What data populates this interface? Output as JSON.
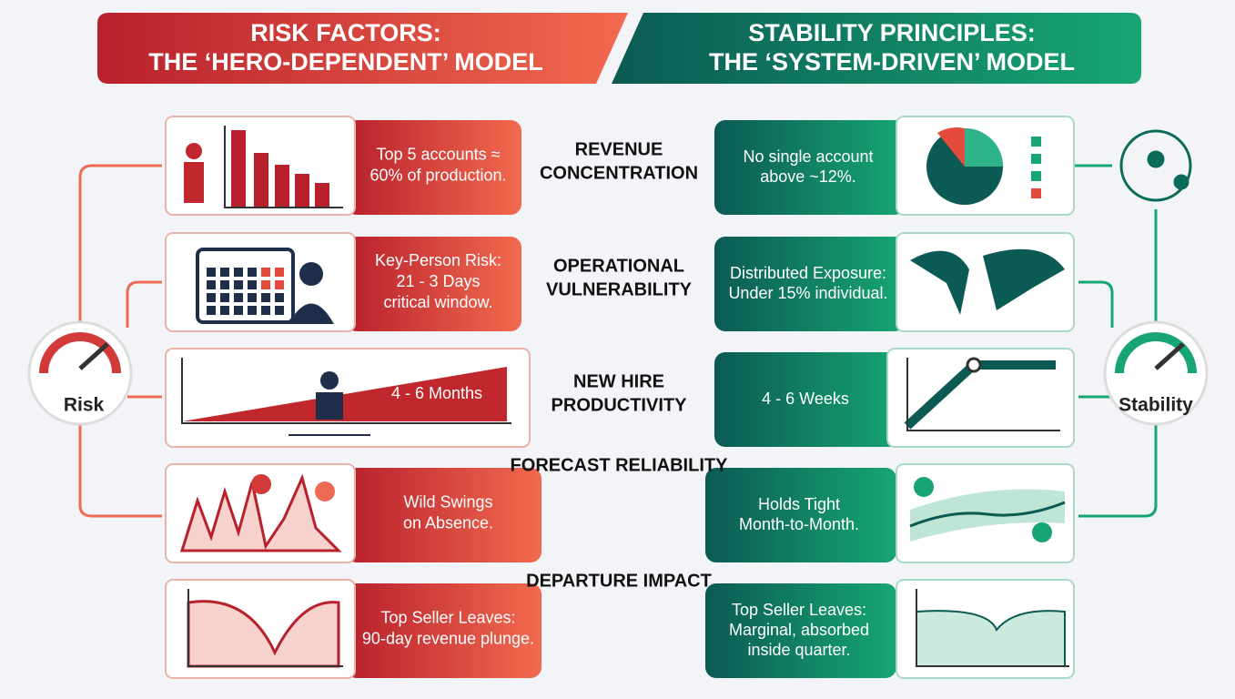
{
  "header": {
    "risk": [
      "RISK FACTORS:",
      "THE ‘HERO-DEPENDENT’ MODEL"
    ],
    "stability": [
      "STABILITY PRINCIPLES:",
      "THE ‘SYSTEM-DRIVEN’ MODEL"
    ]
  },
  "gauges": {
    "risk": "Risk",
    "stability": "Stability"
  },
  "rows": [
    {
      "label": [
        "REVENUE",
        "CONCENTRATION"
      ],
      "risk": [
        "Top 5 accounts ≈",
        "60% of production."
      ],
      "stability": [
        "No single account",
        "above ~12%."
      ]
    },
    {
      "label": [
        "OPERATIONAL",
        "VULNERABILITY"
      ],
      "risk": [
        "Key-Person Risk:",
        "21 - 3 Days",
        "critical window."
      ],
      "stability": [
        "Distributed Exposure:",
        "Under 15% individual."
      ]
    },
    {
      "label": [
        "NEW HIRE",
        "PRODUCTIVITY"
      ],
      "risk": [
        "4 - 6 Months"
      ],
      "stability": [
        "4 - 6 Weeks"
      ]
    },
    {
      "label": [
        "FORECAST RELIABILITY"
      ],
      "risk": [
        "Wild Swings",
        "on Absence."
      ],
      "stability": [
        "Holds Tight",
        "Month-to-Month."
      ]
    },
    {
      "label": [
        "DEPARTURE IMPACT"
      ],
      "risk": [
        "Top Seller Leaves:",
        "90-day revenue plunge."
      ],
      "stability": [
        "Top Seller Leaves:",
        "Marginal, absorbed",
        "inside quarter."
      ]
    }
  ]
}
